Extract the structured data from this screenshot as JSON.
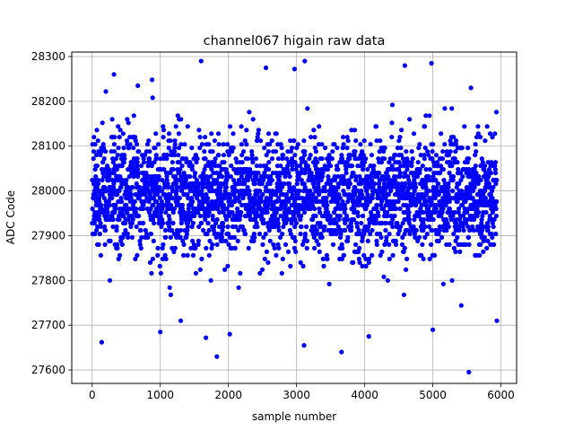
{
  "chart_data": {
    "type": "scatter",
    "title": "channel067 higain raw data",
    "xlabel": "sample number",
    "ylabel": "ADC Code",
    "xlim": [
      -300,
      6230
    ],
    "ylim": [
      27570,
      28310
    ],
    "xticks": [
      0,
      1000,
      2000,
      3000,
      4000,
      5000,
      6000
    ],
    "yticks": [
      27600,
      27700,
      27800,
      27900,
      28000,
      28100,
      28200,
      28300
    ],
    "grid": true,
    "marker_color": "#0000ff",
    "n_samples": 5940,
    "typical_range": [
      27830,
      28130
    ],
    "mean_estimate": 27990,
    "outliers": [
      {
        "x": 140,
        "y": 27662
      },
      {
        "x": 200,
        "y": 28222
      },
      {
        "x": 320,
        "y": 28260
      },
      {
        "x": 670,
        "y": 28235
      },
      {
        "x": 880,
        "y": 28248
      },
      {
        "x": 1000,
        "y": 27685
      },
      {
        "x": 1300,
        "y": 27710
      },
      {
        "x": 1600,
        "y": 28290
      },
      {
        "x": 1670,
        "y": 27672
      },
      {
        "x": 1830,
        "y": 27630
      },
      {
        "x": 2020,
        "y": 27680
      },
      {
        "x": 2550,
        "y": 28275
      },
      {
        "x": 2970,
        "y": 28272
      },
      {
        "x": 3110,
        "y": 27655
      },
      {
        "x": 3120,
        "y": 28290
      },
      {
        "x": 3660,
        "y": 27640
      },
      {
        "x": 4060,
        "y": 27675
      },
      {
        "x": 4590,
        "y": 28280
      },
      {
        "x": 4980,
        "y": 28285
      },
      {
        "x": 5000,
        "y": 27690
      },
      {
        "x": 5530,
        "y": 27595
      },
      {
        "x": 5560,
        "y": 28230
      },
      {
        "x": 5940,
        "y": 27710
      }
    ]
  }
}
